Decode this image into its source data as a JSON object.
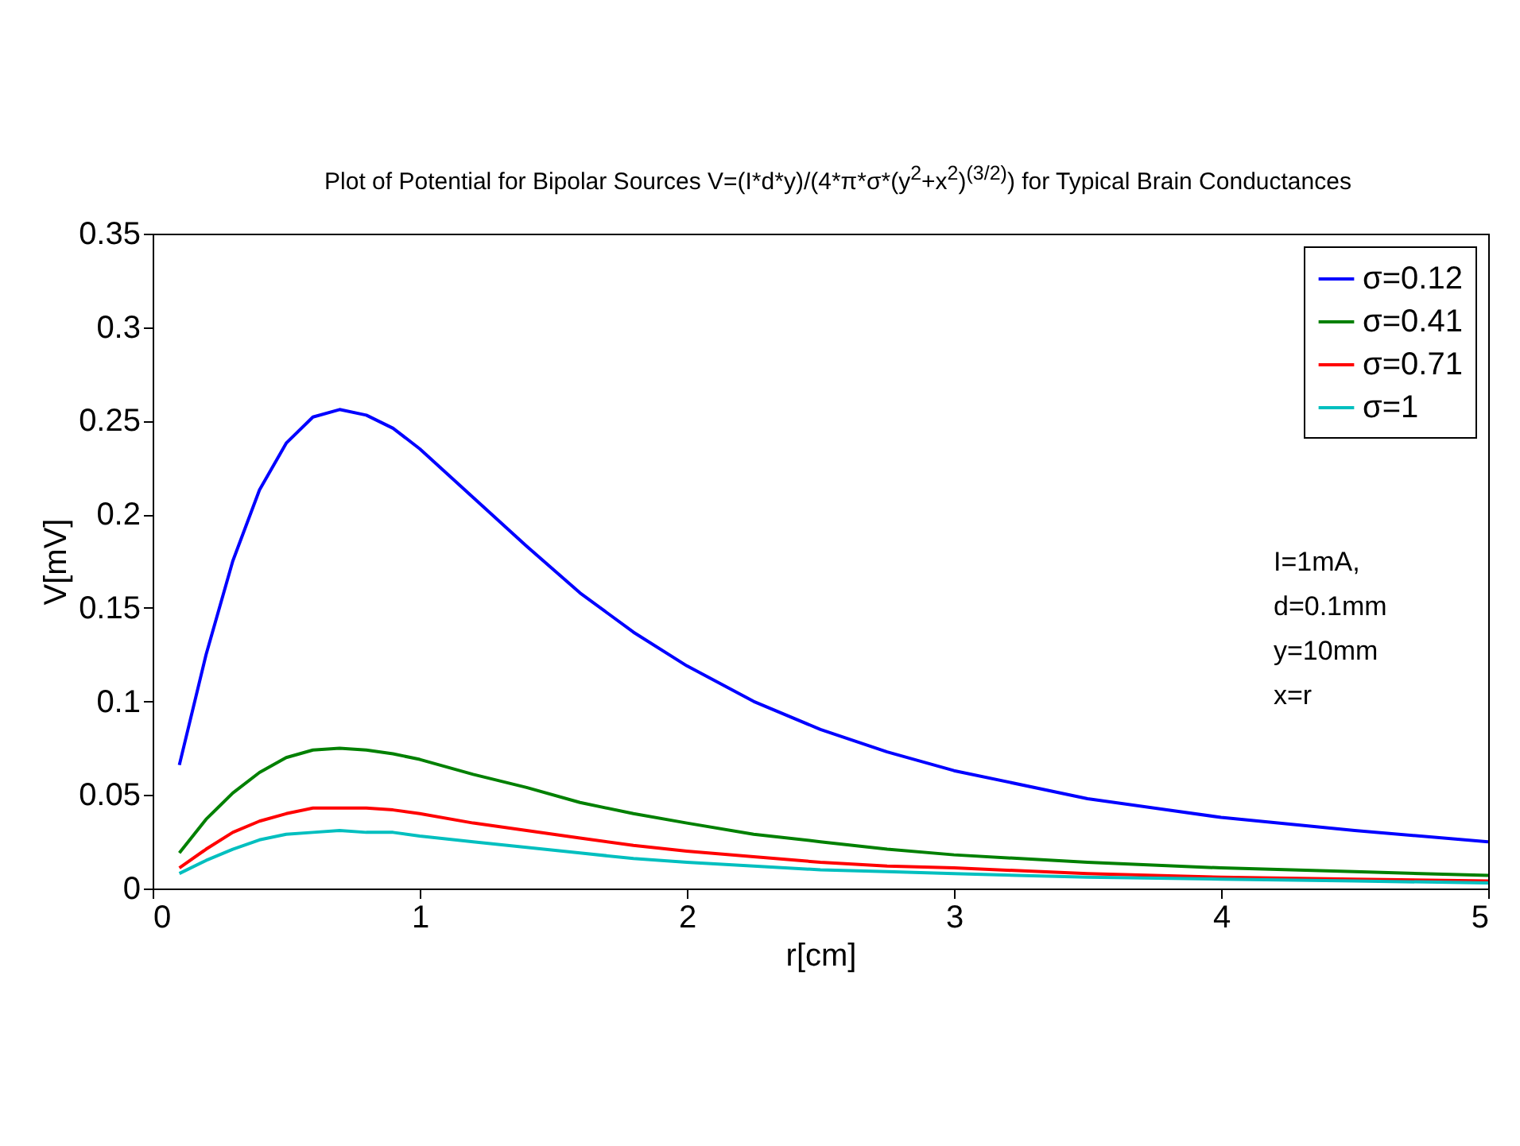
{
  "chart_data": {
    "type": "line",
    "title": "Plot of Potential for Bipolar Sources V=(I*d*y)/(4*π*σ*(y$^{2}$+x$^{2}$)$^{(3/2)}$) for Typical Brain Conductances",
    "xlabel": "r[cm]",
    "ylabel": "V[mV]",
    "x": [
      0.1,
      0.2,
      0.3,
      0.4,
      0.5,
      0.6,
      0.7,
      0.8,
      0.9,
      1,
      1.2,
      1.4,
      1.6,
      1.8,
      2,
      2.25,
      2.5,
      2.75,
      3,
      3.5,
      4,
      4.5,
      5
    ],
    "series": [
      {
        "name": "σ=0.12",
        "color": "#0000ff",
        "values": [
          0.066,
          0.125,
          0.175,
          0.213,
          0.238,
          0.252,
          0.256,
          0.253,
          0.246,
          0.235,
          0.209,
          0.183,
          0.158,
          0.137,
          0.119,
          0.1,
          0.085,
          0.073,
          0.063,
          0.048,
          0.038,
          0.031,
          0.025
        ]
      },
      {
        "name": "σ=0.41",
        "color": "#008000",
        "values": [
          0.019,
          0.037,
          0.051,
          0.062,
          0.07,
          0.074,
          0.075,
          0.074,
          0.072,
          0.069,
          0.061,
          0.054,
          0.046,
          0.04,
          0.035,
          0.029,
          0.025,
          0.021,
          0.018,
          0.014,
          0.011,
          0.009,
          0.007
        ]
      },
      {
        "name": "σ=0.71",
        "color": "#ff0000",
        "values": [
          0.011,
          0.021,
          0.03,
          0.036,
          0.04,
          0.043,
          0.043,
          0.043,
          0.042,
          0.04,
          0.035,
          0.031,
          0.027,
          0.023,
          0.02,
          0.017,
          0.014,
          0.012,
          0.011,
          0.008,
          0.006,
          0.005,
          0.004
        ]
      },
      {
        "name": "σ=1",
        "color": "#00bfbf",
        "values": [
          0.008,
          0.015,
          0.021,
          0.026,
          0.029,
          0.03,
          0.031,
          0.03,
          0.03,
          0.028,
          0.025,
          0.022,
          0.019,
          0.016,
          0.014,
          0.012,
          0.01,
          0.009,
          0.008,
          0.006,
          0.005,
          0.004,
          0.003
        ]
      }
    ],
    "xlim": [
      0,
      5
    ],
    "xticks": [
      0,
      1,
      2,
      3,
      4,
      5
    ],
    "ylim": [
      0,
      0.35
    ],
    "yticks": [
      0,
      0.05,
      0.1,
      0.15,
      0.2,
      0.25,
      0.3,
      0.35
    ],
    "annotations": [
      "I=1mA,",
      "d=0.1mm",
      "y=10mm",
      "x=r"
    ],
    "grid": false,
    "legend": "top right",
    "line_style": "solid",
    "marker": "none"
  }
}
